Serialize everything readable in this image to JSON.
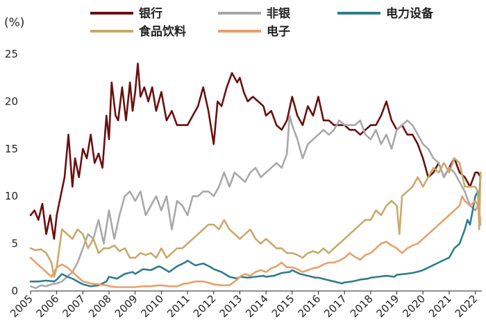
{
  "chart_data": {
    "type": "line",
    "title": "",
    "xlabel": "",
    "ylabel": "(%)",
    "ylim": [
      0,
      25
    ],
    "xlim": [
      2005.0,
      2022.25
    ],
    "y_ticks": [
      "0",
      "5",
      "10",
      "15",
      "20",
      "25"
    ],
    "x_ticks": [
      "2005",
      "2006",
      "2007",
      "2008",
      "2009",
      "2010",
      "2011",
      "2012",
      "2013",
      "2014",
      "2015",
      "2016",
      "2017",
      "2018",
      "2019",
      "2020",
      "2021",
      "2022"
    ],
    "legend_position": "top",
    "grid": false,
    "series": [
      {
        "name": "银行",
        "color": "#6b0f0f",
        "x": [
          2005.0,
          2005.15,
          2005.3,
          2005.45,
          2005.6,
          2005.75,
          2005.9,
          2006.0,
          2006.15,
          2006.3,
          2006.45,
          2006.6,
          2006.7,
          2006.85,
          2007.0,
          2007.15,
          2007.3,
          2007.45,
          2007.6,
          2007.75,
          2007.9,
          2008.0,
          2008.1,
          2008.25,
          2008.35,
          2008.5,
          2008.65,
          2008.8,
          2008.9,
          2009.0,
          2009.1,
          2009.2,
          2009.35,
          2009.5,
          2009.65,
          2009.8,
          2010.0,
          2010.2,
          2010.4,
          2010.6,
          2010.8,
          2011.0,
          2011.2,
          2011.4,
          2011.6,
          2011.8,
          2012.0,
          2012.15,
          2012.3,
          2012.5,
          2012.7,
          2012.9,
          2013.0,
          2013.15,
          2013.3,
          2013.5,
          2013.7,
          2013.9,
          2014.0,
          2014.2,
          2014.4,
          2014.6,
          2014.8,
          2015.0,
          2015.2,
          2015.4,
          2015.6,
          2015.8,
          2016.0,
          2016.2,
          2016.4,
          2016.6,
          2016.8,
          2017.0,
          2017.2,
          2017.4,
          2017.6,
          2017.8,
          2018.0,
          2018.2,
          2018.4,
          2018.6,
          2018.8,
          2019.0,
          2019.2,
          2019.4,
          2019.6,
          2019.8,
          2020.0,
          2020.2,
          2020.4,
          2020.6,
          2020.8,
          2021.0,
          2021.2,
          2021.4,
          2021.6,
          2021.8,
          2022.0,
          2022.1,
          2022.2
        ],
        "values": [
          8.0,
          8.5,
          7.5,
          9.2,
          6.0,
          8.0,
          5.5,
          8.0,
          10.0,
          12.0,
          16.5,
          11.0,
          14.0,
          12.0,
          15.0,
          14.0,
          16.5,
          13.5,
          14.5,
          13.0,
          18.5,
          16.0,
          22.0,
          18.5,
          18.0,
          21.5,
          18.0,
          22.0,
          19.0,
          21.0,
          24.0,
          20.5,
          21.5,
          20.0,
          21.5,
          19.0,
          21.0,
          18.0,
          19.0,
          17.5,
          17.5,
          17.5,
          18.5,
          19.5,
          21.5,
          19.0,
          15.5,
          20.0,
          19.5,
          21.5,
          23.0,
          22.0,
          22.5,
          21.0,
          20.0,
          20.5,
          20.0,
          19.5,
          18.5,
          19.0,
          17.5,
          17.0,
          18.0,
          20.5,
          18.5,
          17.5,
          19.5,
          18.5,
          20.5,
          18.0,
          18.0,
          17.5,
          17.5,
          17.5,
          17.0,
          17.0,
          16.5,
          17.0,
          17.5,
          17.5,
          18.5,
          20.0,
          18.0,
          17.0,
          17.5,
          16.5,
          16.5,
          15.5,
          14.0,
          12.0,
          12.5,
          13.5,
          12.0,
          13.0,
          14.0,
          12.5,
          12.0,
          11.0,
          12.5,
          12.5,
          12.0
        ]
      },
      {
        "name": "非银",
        "color": "#a8a8a8",
        "x": [
          2005.0,
          2005.2,
          2005.4,
          2005.6,
          2005.8,
          2006.0,
          2006.2,
          2006.4,
          2006.6,
          2006.8,
          2007.0,
          2007.2,
          2007.4,
          2007.6,
          2007.8,
          2008.0,
          2008.2,
          2008.4,
          2008.6,
          2008.8,
          2009.0,
          2009.2,
          2009.4,
          2009.6,
          2009.8,
          2010.0,
          2010.2,
          2010.4,
          2010.6,
          2010.8,
          2011.0,
          2011.2,
          2011.4,
          2011.6,
          2011.8,
          2012.0,
          2012.2,
          2012.4,
          2012.6,
          2012.8,
          2013.0,
          2013.2,
          2013.4,
          2013.6,
          2013.8,
          2014.0,
          2014.2,
          2014.4,
          2014.6,
          2014.8,
          2014.9,
          2015.0,
          2015.2,
          2015.4,
          2015.6,
          2015.8,
          2016.0,
          2016.2,
          2016.4,
          2016.6,
          2016.8,
          2017.0,
          2017.2,
          2017.4,
          2017.6,
          2017.8,
          2018.0,
          2018.2,
          2018.4,
          2018.6,
          2018.8,
          2019.0,
          2019.2,
          2019.4,
          2019.6,
          2019.8,
          2020.0,
          2020.2,
          2020.4,
          2020.6,
          2020.8,
          2021.0,
          2021.2,
          2021.4,
          2021.6,
          2021.8,
          2022.0,
          2022.1,
          2022.2
        ],
        "values": [
          0.5,
          0.3,
          0.6,
          0.5,
          0.7,
          0.8,
          1.0,
          1.5,
          2.0,
          3.0,
          4.5,
          6.0,
          5.5,
          7.5,
          5.0,
          8.5,
          5.5,
          8.0,
          10.0,
          10.5,
          9.5,
          10.5,
          8.0,
          9.0,
          10.0,
          8.5,
          10.0,
          6.5,
          9.5,
          9.0,
          8.0,
          10.0,
          10.0,
          10.5,
          10.5,
          10.0,
          11.0,
          12.5,
          11.0,
          12.5,
          12.0,
          11.5,
          12.5,
          13.0,
          12.0,
          12.5,
          13.0,
          13.5,
          13.0,
          14.5,
          18.5,
          17.5,
          16.0,
          14.0,
          15.5,
          16.0,
          16.5,
          17.0,
          16.5,
          17.0,
          18.0,
          17.5,
          17.5,
          17.5,
          18.0,
          16.5,
          16.0,
          17.0,
          15.5,
          16.5,
          15.0,
          17.0,
          17.5,
          18.0,
          17.5,
          16.5,
          15.5,
          15.0,
          14.0,
          13.5,
          12.0,
          13.0,
          12.5,
          11.5,
          10.5,
          9.0,
          8.5,
          9.0,
          7.0
        ]
      },
      {
        "name": "电力设备",
        "color": "#2e7d8c",
        "x": [
          2005.0,
          2005.3,
          2005.6,
          2005.9,
          2006.0,
          2006.2,
          2006.4,
          2006.6,
          2006.8,
          2007.0,
          2007.3,
          2007.6,
          2007.9,
          2008.0,
          2008.3,
          2008.6,
          2008.9,
          2009.0,
          2009.3,
          2009.6,
          2009.9,
          2010.0,
          2010.3,
          2010.6,
          2010.9,
          2011.0,
          2011.3,
          2011.6,
          2011.9,
          2012.0,
          2012.3,
          2012.6,
          2012.9,
          2013.0,
          2013.3,
          2013.6,
          2013.9,
          2014.0,
          2014.3,
          2014.6,
          2014.9,
          2015.0,
          2015.3,
          2015.6,
          2015.9,
          2016.0,
          2016.3,
          2016.6,
          2016.9,
          2017.0,
          2017.3,
          2017.6,
          2017.9,
          2018.0,
          2018.3,
          2018.6,
          2018.9,
          2019.0,
          2019.3,
          2019.6,
          2019.9,
          2020.0,
          2020.3,
          2020.6,
          2020.9,
          2021.0,
          2021.2,
          2021.4,
          2021.6,
          2021.7,
          2021.8,
          2022.0,
          2022.1,
          2022.15,
          2022.2
        ],
        "values": [
          1.0,
          1.0,
          1.1,
          1.0,
          1.2,
          1.8,
          1.5,
          1.3,
          1.0,
          0.7,
          0.5,
          0.6,
          1.0,
          1.5,
          1.3,
          1.8,
          2.0,
          1.8,
          2.3,
          2.2,
          2.6,
          2.5,
          2.0,
          2.6,
          3.0,
          3.2,
          2.7,
          2.9,
          2.5,
          2.3,
          2.0,
          1.5,
          1.3,
          1.5,
          1.4,
          1.5,
          1.6,
          1.5,
          1.6,
          1.9,
          2.0,
          2.2,
          1.8,
          1.6,
          1.4,
          1.4,
          1.2,
          1.0,
          0.8,
          0.9,
          1.0,
          1.2,
          1.3,
          1.4,
          1.5,
          1.6,
          1.5,
          1.7,
          1.8,
          1.9,
          2.1,
          2.2,
          2.6,
          3.0,
          3.4,
          3.5,
          4.5,
          5.0,
          6.5,
          7.5,
          7.0,
          10.0,
          10.5,
          9.5,
          12.5
        ]
      },
      {
        "name": "食品饮料",
        "color": "#c8a96a",
        "x": [
          2005.0,
          2005.2,
          2005.4,
          2005.6,
          2005.8,
          2005.9,
          2006.0,
          2006.2,
          2006.4,
          2006.6,
          2006.8,
          2007.0,
          2007.2,
          2007.4,
          2007.6,
          2007.8,
          2008.0,
          2008.2,
          2008.4,
          2008.6,
          2008.8,
          2009.0,
          2009.2,
          2009.4,
          2009.6,
          2009.8,
          2010.0,
          2010.2,
          2010.4,
          2010.6,
          2010.8,
          2011.0,
          2011.2,
          2011.4,
          2011.6,
          2011.8,
          2012.0,
          2012.2,
          2012.4,
          2012.6,
          2012.8,
          2013.0,
          2013.2,
          2013.4,
          2013.6,
          2013.8,
          2014.0,
          2014.2,
          2014.4,
          2014.6,
          2014.8,
          2015.0,
          2015.2,
          2015.4,
          2015.6,
          2015.8,
          2016.0,
          2016.2,
          2016.4,
          2016.6,
          2016.8,
          2017.0,
          2017.2,
          2017.4,
          2017.6,
          2017.8,
          2018.0,
          2018.2,
          2018.4,
          2018.6,
          2018.8,
          2019.0,
          2019.1,
          2019.2,
          2019.4,
          2019.6,
          2019.8,
          2020.0,
          2020.2,
          2020.4,
          2020.6,
          2020.8,
          2021.0,
          2021.2,
          2021.4,
          2021.6,
          2021.8,
          2022.0,
          2022.1,
          2022.15,
          2022.2
        ],
        "values": [
          4.5,
          4.3,
          4.4,
          4.0,
          3.0,
          1.5,
          2.5,
          6.5,
          6.0,
          5.5,
          6.5,
          6.0,
          4.5,
          5.5,
          4.0,
          4.5,
          4.5,
          4.8,
          4.2,
          4.5,
          3.5,
          3.5,
          4.0,
          3.8,
          4.0,
          3.5,
          4.5,
          3.5,
          4.0,
          4.5,
          4.5,
          5.0,
          5.5,
          6.0,
          6.5,
          7.0,
          7.0,
          6.5,
          7.5,
          6.5,
          6.0,
          5.5,
          6.0,
          6.5,
          5.5,
          5.0,
          5.5,
          5.0,
          4.5,
          4.5,
          4.0,
          4.0,
          3.8,
          3.5,
          4.0,
          4.2,
          4.0,
          4.5,
          4.0,
          4.5,
          5.0,
          5.5,
          6.0,
          6.5,
          7.0,
          7.5,
          7.5,
          8.5,
          8.0,
          9.0,
          9.5,
          9.0,
          6.0,
          10.0,
          10.5,
          11.0,
          12.0,
          11.0,
          12.0,
          13.0,
          12.5,
          13.5,
          12.5,
          14.0,
          13.5,
          11.0,
          11.0,
          11.0,
          10.5,
          6.5,
          12.5
        ]
      },
      {
        "name": "电子",
        "color": "#e8a06a",
        "x": [
          2005.0,
          2005.2,
          2005.4,
          2005.6,
          2005.8,
          2006.0,
          2006.2,
          2006.4,
          2006.6,
          2006.8,
          2007.0,
          2007.3,
          2007.6,
          2007.9,
          2008.0,
          2008.3,
          2008.6,
          2008.9,
          2009.0,
          2009.3,
          2009.6,
          2009.9,
          2010.0,
          2010.3,
          2010.6,
          2010.9,
          2011.0,
          2011.3,
          2011.6,
          2011.9,
          2012.0,
          2012.3,
          2012.6,
          2012.9,
          2013.0,
          2013.2,
          2013.4,
          2013.6,
          2013.8,
          2014.0,
          2014.2,
          2014.4,
          2014.6,
          2014.8,
          2015.0,
          2015.2,
          2015.4,
          2015.6,
          2015.8,
          2016.0,
          2016.2,
          2016.4,
          2016.6,
          2016.8,
          2017.0,
          2017.2,
          2017.4,
          2017.6,
          2017.8,
          2018.0,
          2018.2,
          2018.4,
          2018.6,
          2018.8,
          2019.0,
          2019.2,
          2019.4,
          2019.6,
          2019.8,
          2020.0,
          2020.2,
          2020.4,
          2020.6,
          2020.8,
          2021.0,
          2021.2,
          2021.4,
          2021.5,
          2021.6,
          2021.8,
          2022.0,
          2022.1,
          2022.2
        ],
        "values": [
          3.5,
          3.0,
          2.5,
          2.0,
          1.5,
          2.5,
          2.8,
          2.5,
          2.0,
          1.5,
          1.0,
          0.8,
          0.7,
          0.6,
          0.5,
          0.4,
          0.4,
          0.4,
          0.4,
          0.5,
          0.5,
          0.6,
          0.6,
          0.5,
          0.5,
          0.8,
          0.8,
          1.0,
          1.0,
          0.8,
          0.7,
          0.6,
          0.6,
          1.2,
          1.5,
          1.8,
          1.6,
          2.0,
          2.2,
          2.0,
          2.4,
          2.6,
          3.0,
          2.5,
          2.5,
          2.3,
          2.0,
          2.2,
          2.4,
          2.5,
          2.8,
          3.0,
          3.0,
          3.2,
          3.5,
          4.0,
          3.6,
          3.3,
          3.8,
          4.0,
          4.5,
          5.0,
          5.2,
          4.8,
          4.5,
          4.0,
          4.5,
          4.8,
          5.0,
          5.5,
          6.0,
          6.5,
          7.0,
          7.5,
          8.0,
          8.5,
          9.0,
          10.0,
          9.5,
          9.0,
          9.5,
          9.0,
          7.5
        ]
      }
    ]
  }
}
